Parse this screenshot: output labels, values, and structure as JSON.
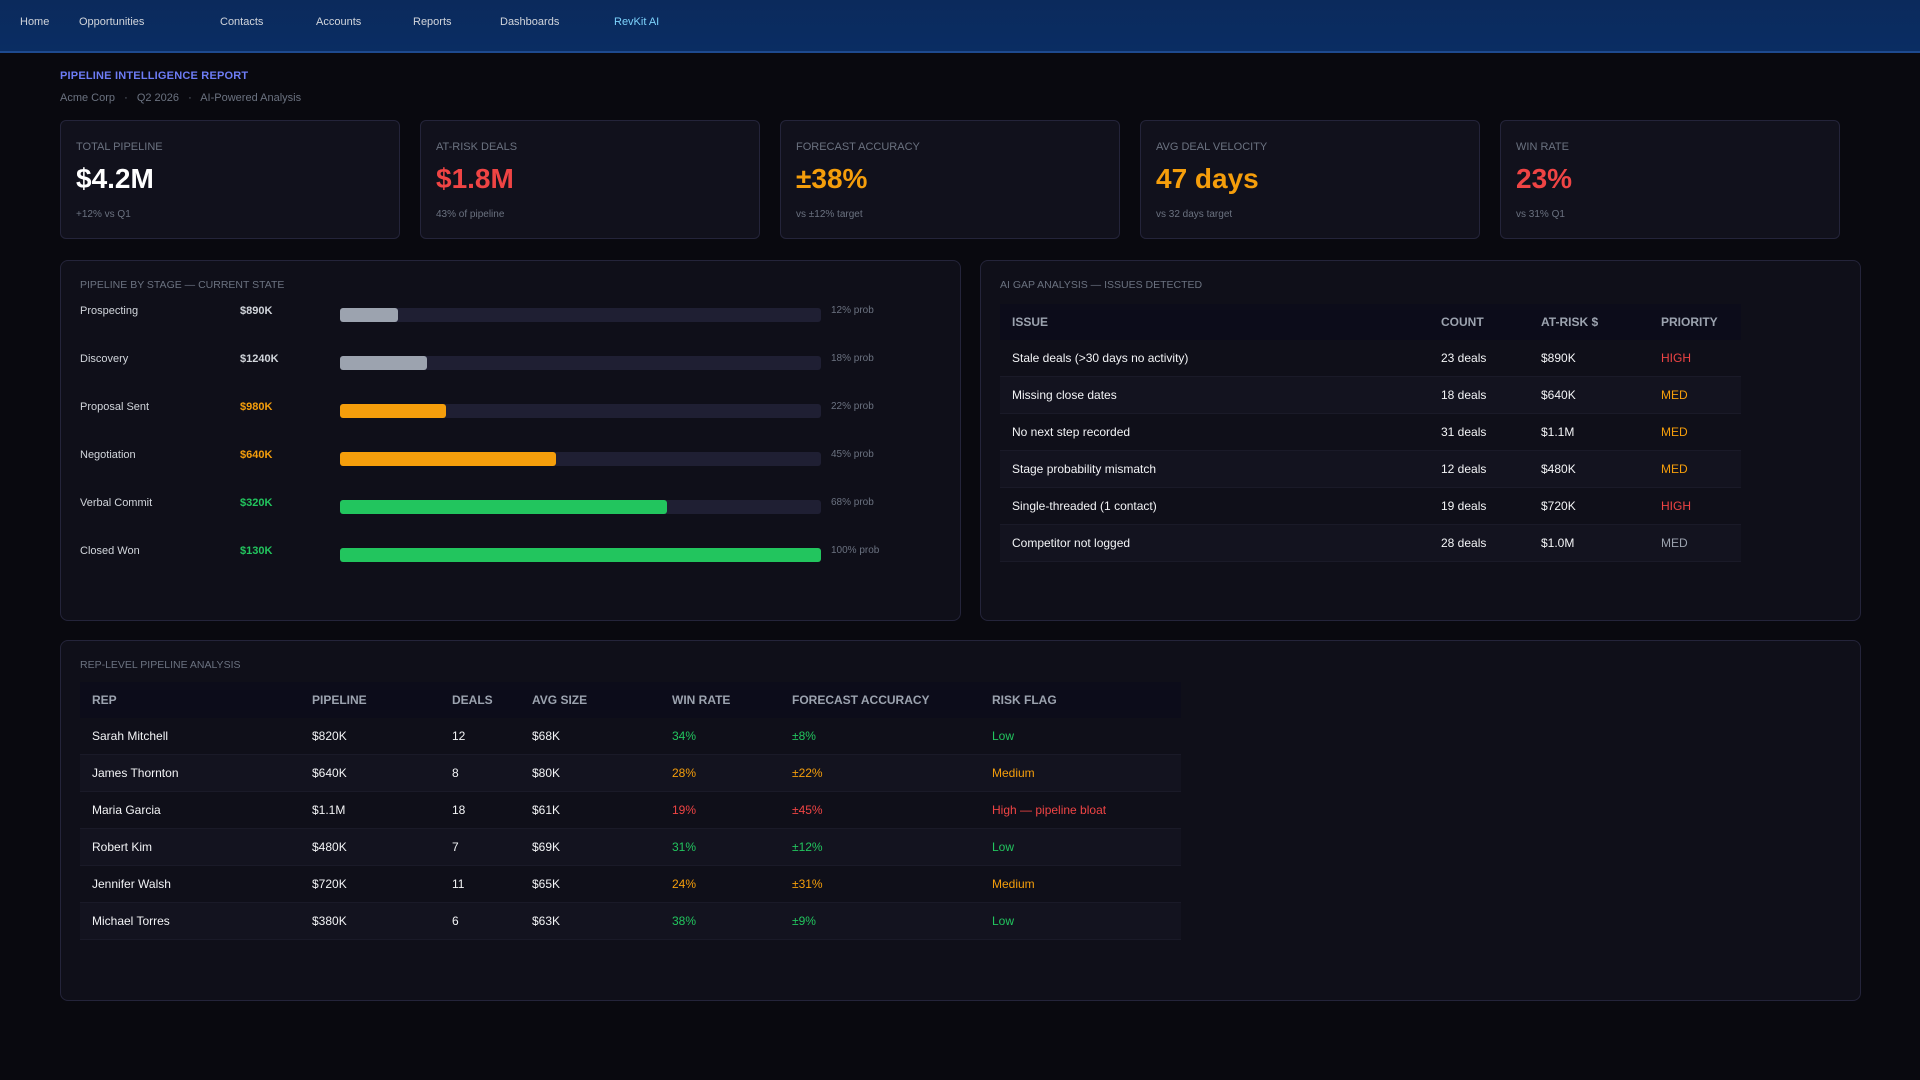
{
  "nav": {
    "items": [
      {
        "label": "Home"
      },
      {
        "label": "Opportunities"
      },
      {
        "label": "Contacts"
      },
      {
        "label": "Accounts"
      },
      {
        "label": "Reports"
      },
      {
        "label": "Dashboards"
      },
      {
        "label": "RevKit AI"
      }
    ]
  },
  "report": {
    "title": "PIPELINE INTELLIGENCE REPORT",
    "company": "Acme Corp",
    "quarter": "Q2 2026",
    "subtitle": "AI-Powered Analysis",
    "separator": "·"
  },
  "kpis": [
    {
      "label": "TOTAL PIPELINE",
      "value": "$4.2M",
      "sub": "+12% vs Q1",
      "color": "#ffffff"
    },
    {
      "label": "AT-RISK DEALS",
      "value": "$1.8M",
      "sub": "43% of pipeline",
      "color": "#ef4444"
    },
    {
      "label": "FORECAST ACCURACY",
      "value": "±38%",
      "sub": "vs ±12% target",
      "color": "#f59e0b"
    },
    {
      "label": "AVG DEAL VELOCITY",
      "value": "47 days",
      "sub": "vs 32 days target",
      "color": "#f59e0b"
    },
    {
      "label": "WIN RATE",
      "value": "23%",
      "sub": "vs 31% Q1",
      "color": "#ef4444"
    }
  ],
  "stages": {
    "title": "PIPELINE BY STAGE — CURRENT STATE",
    "rows": [
      {
        "name": "Prospecting",
        "amount": "$890K",
        "prob": "12% prob",
        "level": 0.12,
        "color": "#9ca3af",
        "amount_color": "#d1d5db"
      },
      {
        "name": "Discovery",
        "amount": "$1240K",
        "prob": "18% prob",
        "level": 0.18,
        "color": "#9ca3af",
        "amount_color": "#d1d5db"
      },
      {
        "name": "Proposal Sent",
        "amount": "$980K",
        "prob": "22% prob",
        "level": 0.22,
        "color": "#f59e0b",
        "amount_color": "#f59e0b"
      },
      {
        "name": "Negotiation",
        "amount": "$640K",
        "prob": "45% prob",
        "level": 0.45,
        "color": "#f59e0b",
        "amount_color": "#f59e0b"
      },
      {
        "name": "Verbal Commit",
        "amount": "$320K",
        "prob": "68% prob",
        "level": 0.68,
        "color": "#22c55e",
        "amount_color": "#22c55e"
      },
      {
        "name": "Closed Won",
        "amount": "$130K",
        "prob": "100% prob",
        "level": 1.0,
        "color": "#22c55e",
        "amount_color": "#22c55e"
      }
    ]
  },
  "gaps": {
    "title": "AI GAP ANALYSIS — ISSUES DETECTED",
    "headers": [
      "ISSUE",
      "COUNT",
      "AT-RISK $",
      "PRIORITY"
    ],
    "rows": [
      {
        "issue": "Stale deals (>30 days no activity)",
        "count": "23 deals",
        "risk": "$890K",
        "priority": "HIGH",
        "priority_color": "#ef4444"
      },
      {
        "issue": "Missing close dates",
        "count": "18 deals",
        "risk": "$640K",
        "priority": "MED",
        "priority_color": "#f59e0b"
      },
      {
        "issue": "No next step recorded",
        "count": "31 deals",
        "risk": "$1.1M",
        "priority": "MED",
        "priority_color": "#f59e0b"
      },
      {
        "issue": "Stage probability mismatch",
        "count": "12 deals",
        "risk": "$480K",
        "priority": "MED",
        "priority_color": "#f59e0b"
      },
      {
        "issue": "Single-threaded (1 contact)",
        "count": "19 deals",
        "risk": "$720K",
        "priority": "HIGH",
        "priority_color": "#ef4444"
      },
      {
        "issue": "Competitor not logged",
        "count": "28 deals",
        "risk": "$1.0M",
        "priority": "MED",
        "priority_color": "#9ca3af"
      }
    ]
  },
  "reps": {
    "title": "REP-LEVEL PIPELINE ANALYSIS",
    "headers": [
      "REP",
      "PIPELINE",
      "DEALS",
      "AVG SIZE",
      "WIN RATE",
      "FORECAST ACCURACY",
      "RISK FLAG"
    ],
    "rows": [
      {
        "name": "Sarah Mitchell",
        "pipeline": "$820K",
        "deals": "12",
        "avg": "$68K",
        "win": "34%",
        "acc": "±8%",
        "flag": "Low",
        "color": "#22c55e"
      },
      {
        "name": "James Thornton",
        "pipeline": "$640K",
        "deals": "8",
        "avg": "$80K",
        "win": "28%",
        "acc": "±22%",
        "flag": "Medium",
        "color": "#f59e0b"
      },
      {
        "name": "Maria Garcia",
        "pipeline": "$1.1M",
        "deals": "18",
        "avg": "$61K",
        "win": "19%",
        "acc": "±45%",
        "flag": "High — pipeline bloat",
        "color": "#ef4444"
      },
      {
        "name": "Robert Kim",
        "pipeline": "$480K",
        "deals": "7",
        "avg": "$69K",
        "win": "31%",
        "acc": "±12%",
        "flag": "Low",
        "color": "#22c55e"
      },
      {
        "name": "Jennifer Walsh",
        "pipeline": "$720K",
        "deals": "11",
        "avg": "$65K",
        "win": "24%",
        "acc": "±31%",
        "flag": "Medium",
        "color": "#f59e0b"
      },
      {
        "name": "Michael Torres",
        "pipeline": "$380K",
        "deals": "6",
        "avg": "$63K",
        "win": "38%",
        "acc": "±9%",
        "flag": "Low",
        "color": "#22c55e"
      }
    ]
  }
}
